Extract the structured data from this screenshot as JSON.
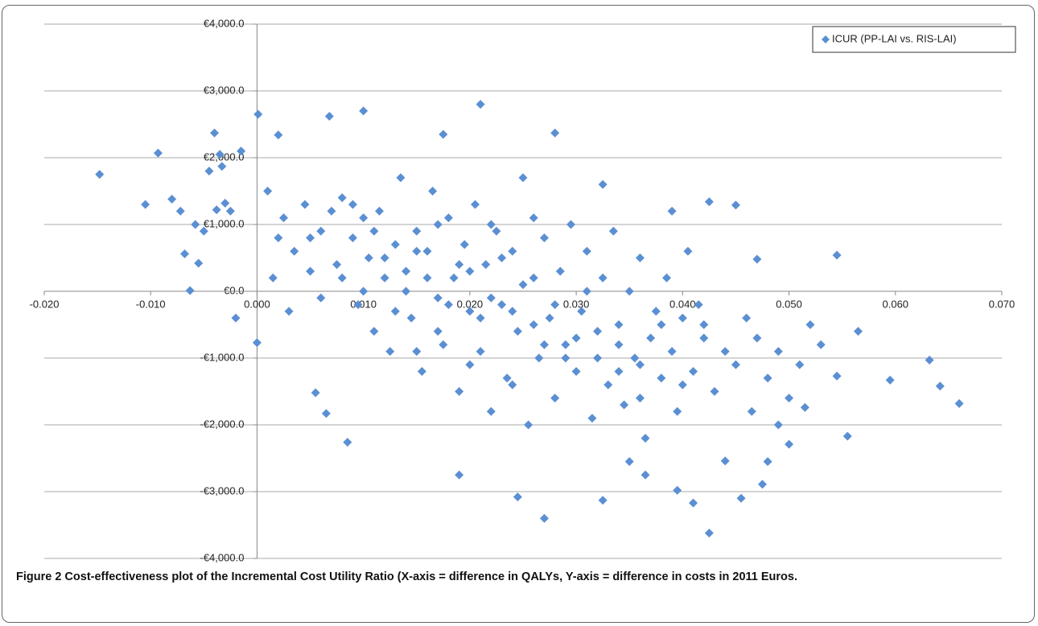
{
  "chart_data": {
    "type": "scatter",
    "caption": "Figure 2 Cost-effectiveness plot of the Incremental Cost Utility Ratio (X-axis = difference in QALYs, Y-axis = difference in costs in 2011 Euros.",
    "legend": "top-right",
    "grid": true,
    "xlim": [
      -0.02,
      0.07
    ],
    "xticks": [
      {
        "value": -0.02,
        "label": "-0.020"
      },
      {
        "value": -0.01,
        "label": "-0.010"
      },
      {
        "value": 0,
        "label": "0.000"
      },
      {
        "value": 0.01,
        "label": "0.010"
      },
      {
        "value": 0.02,
        "label": "0.020"
      },
      {
        "value": 0.03,
        "label": "0.030"
      },
      {
        "value": 0.04,
        "label": "0.040"
      },
      {
        "value": 0.05,
        "label": "0.050"
      },
      {
        "value": 0.06,
        "label": "0.060"
      },
      {
        "value": 0.07,
        "label": "0.070"
      }
    ],
    "ylim": [
      -4000,
      4000
    ],
    "yticks": [
      {
        "value": -4000,
        "label": "-€4,000.0"
      },
      {
        "value": -3000,
        "label": "-€3,000.0"
      },
      {
        "value": -2000,
        "label": "-€2,000.0"
      },
      {
        "value": -1000,
        "label": "-€1,000.0"
      },
      {
        "value": 0,
        "label": "€0.0"
      },
      {
        "value": 1000,
        "label": "€1,000.0"
      },
      {
        "value": 2000,
        "label": "€2,000.0"
      },
      {
        "value": 3000,
        "label": "€3,000.0"
      },
      {
        "value": 4000,
        "label": "€4,000.0"
      }
    ],
    "series": [
      {
        "name": "ICUR (PP-LAI vs. RIS-LAI)",
        "color": "#5b8fd3",
        "x": [
          -0.0148,
          -0.0105,
          -0.0093,
          -0.008,
          -0.0072,
          -0.0068,
          -0.0063,
          -0.0058,
          -0.0055,
          -0.005,
          -0.0045,
          -0.004,
          -0.0038,
          -0.0035,
          -0.0033,
          -0.003,
          -0.0025,
          -0.002,
          -0.0015,
          0.0001,
          0.0,
          0.002,
          0.0068,
          0.01,
          0.021,
          0.028,
          0.0175,
          0.0055,
          0.0065,
          0.0085,
          0.019,
          0.0245,
          0.027,
          0.0325,
          0.0395,
          0.0425,
          0.0455,
          0.0475,
          0.041,
          0.0545,
          0.0565,
          0.0555,
          0.0595,
          0.0632,
          0.0642,
          0.066,
          0.0545,
          0.0515,
          0.0425,
          0.045,
          0.0325,
          0.039,
          0.047,
          0.05,
          0.049,
          0.048,
          0.044,
          0.0365,
          0.035,
          0.002,
          0.001,
          0.0025,
          0.0035,
          0.0045,
          0.005,
          0.006,
          0.007,
          0.0075,
          0.003,
          0.0015,
          0.008,
          0.009,
          0.0095,
          0.01,
          0.0105,
          0.011,
          0.0115,
          0.012,
          0.0125,
          0.013,
          0.0135,
          0.014,
          0.0145,
          0.015,
          0.0155,
          0.016,
          0.0165,
          0.017,
          0.0175,
          0.018,
          0.0185,
          0.019,
          0.0195,
          0.02,
          0.0205,
          0.021,
          0.0215,
          0.022,
          0.0225,
          0.023,
          0.0235,
          0.024,
          0.0245,
          0.025,
          0.0255,
          0.026,
          0.0265,
          0.027,
          0.0275,
          0.028,
          0.0285,
          0.029,
          0.0295,
          0.03,
          0.0305,
          0.031,
          0.0315,
          0.032,
          0.0325,
          0.033,
          0.0335,
          0.034,
          0.0345,
          0.035,
          0.0355,
          0.036,
          0.0365,
          0.037,
          0.0375,
          0.038,
          0.0385,
          0.039,
          0.0395,
          0.04,
          0.0405,
          0.041,
          0.0415,
          0.042,
          0.043,
          0.044,
          0.045,
          0.046,
          0.0465,
          0.047,
          0.048,
          0.049,
          0.05,
          0.051,
          0.052,
          0.053,
          0.012,
          0.014,
          0.016,
          0.018,
          0.02,
          0.022,
          0.024,
          0.026,
          0.028,
          0.03,
          0.013,
          0.015,
          0.017,
          0.019,
          0.021,
          0.023,
          0.025,
          0.027,
          0.029,
          0.031,
          0.01,
          0.011,
          0.015,
          0.017,
          0.02,
          0.022,
          0.024,
          0.026,
          0.032,
          0.034,
          0.005,
          0.006,
          0.008,
          0.009,
          0.034,
          0.036,
          0.038,
          0.04,
          0.042,
          0.036
        ],
        "values": [
          1750,
          1300,
          2070,
          1380,
          1200,
          560,
          10,
          1000,
          420,
          900,
          1800,
          2370,
          1220,
          2050,
          1870,
          1320,
          1200,
          -400,
          2100,
          2650,
          -770,
          2340,
          2620,
          2700,
          2800,
          2370,
          2350,
          -1520,
          -1830,
          -2260,
          -2750,
          -3080,
          -3400,
          -3130,
          -2980,
          -3620,
          -3100,
          -2890,
          -3170,
          540,
          -600,
          -2170,
          -1330,
          -1030,
          -1420,
          -1680,
          -1270,
          -1740,
          1340,
          1290,
          1600,
          1200,
          480,
          -2290,
          -2000,
          -2550,
          -2540,
          -2750,
          -2550,
          800,
          1500,
          1100,
          600,
          1300,
          300,
          900,
          1200,
          400,
          -300,
          200,
          1400,
          800,
          -200,
          1100,
          500,
          -600,
          1200,
          200,
          -900,
          700,
          1700,
          300,
          -400,
          900,
          -1200,
          600,
          1500,
          -100,
          -800,
          1100,
          200,
          -1500,
          700,
          -300,
          1300,
          -900,
          400,
          -1800,
          900,
          -200,
          -1300,
          600,
          -600,
          1700,
          -2000,
          200,
          -1000,
          800,
          -400,
          -1600,
          300,
          -800,
          1000,
          -1200,
          -300,
          600,
          -1900,
          -600,
          200,
          -1400,
          900,
          -500,
          -1700,
          0,
          -1000,
          500,
          -2200,
          -700,
          -300,
          -1300,
          200,
          -900,
          -1800,
          -400,
          600,
          -1200,
          -200,
          -700,
          -1500,
          -900,
          -1100,
          -400,
          -1800,
          -700,
          -1300,
          -900,
          -1600,
          -1100,
          -500,
          -800,
          500,
          0,
          200,
          -200,
          300,
          -100,
          -300,
          -500,
          -200,
          -700,
          -300,
          600,
          -600,
          400,
          -400,
          500,
          100,
          -800,
          -1000,
          0,
          0,
          900,
          -900,
          1000,
          -1100,
          1000,
          -1400,
          1100,
          -1000,
          -800,
          800,
          -100,
          200,
          1300,
          -1200,
          -1600,
          -500,
          -1400,
          -500,
          -1100
        ]
      }
    ]
  }
}
